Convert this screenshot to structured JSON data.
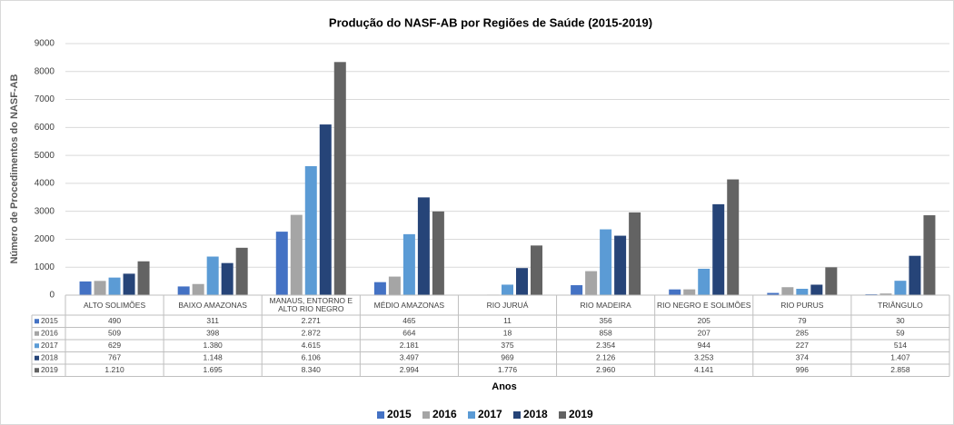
{
  "chart_data": {
    "type": "bar",
    "title": "Produção do NASF-AB por Regiões de Saúde (2015-2019)",
    "x_label": "Anos",
    "y_label": "Número de Procedimentos do NASF-AB",
    "categories": [
      "ALTO SOLIMÕES",
      "BAIXO AMAZONAS",
      "MANAUS, ENTORNO E ALTO RIO NEGRO",
      "MÉDIO AMAZONAS",
      "RIO JURUÁ",
      "RIO MADEIRA",
      "RIO NEGRO E SOLIMÕES",
      "RIO PURUS",
      "TRIÂNGULO"
    ],
    "series": [
      {
        "name": "2015",
        "color": "#4472c4",
        "values": [
          490,
          311,
          2271,
          465,
          11,
          356,
          205,
          79,
          30
        ],
        "value_labels": [
          "490",
          "311",
          "2.271",
          "465",
          "11",
          "356",
          "205",
          "79",
          "30"
        ]
      },
      {
        "name": "2016",
        "color": "#a5a5a5",
        "values": [
          509,
          398,
          2872,
          664,
          18,
          858,
          207,
          285,
          59
        ],
        "value_labels": [
          "509",
          "398",
          "2.872",
          "664",
          "18",
          "858",
          "207",
          "285",
          "59"
        ]
      },
      {
        "name": "2017",
        "color": "#5b9bd5",
        "values": [
          629,
          1380,
          4615,
          2181,
          375,
          2354,
          944,
          227,
          514
        ],
        "value_labels": [
          "629",
          "1.380",
          "4.615",
          "2.181",
          "375",
          "2.354",
          "944",
          "227",
          "514"
        ]
      },
      {
        "name": "2018",
        "color": "#264478",
        "values": [
          767,
          1148,
          6106,
          3497,
          969,
          2126,
          3253,
          374,
          1407
        ],
        "value_labels": [
          "767",
          "1.148",
          "6.106",
          "3.497",
          "969",
          "2.126",
          "3.253",
          "374",
          "1.407"
        ]
      },
      {
        "name": "2019",
        "color": "#636363",
        "values": [
          1210,
          1695,
          8340,
          2994,
          1776,
          2960,
          4141,
          996,
          2858
        ],
        "value_labels": [
          "1.210",
          "1.695",
          "8.340",
          "2.994",
          "1.776",
          "2.960",
          "4.141",
          "996",
          "2.858"
        ]
      }
    ],
    "ylim": [
      0,
      9000
    ],
    "yticks": [
      0,
      1000,
      2000,
      3000,
      4000,
      5000,
      6000,
      7000,
      8000,
      9000
    ],
    "grid": true,
    "legend": "bottom"
  }
}
